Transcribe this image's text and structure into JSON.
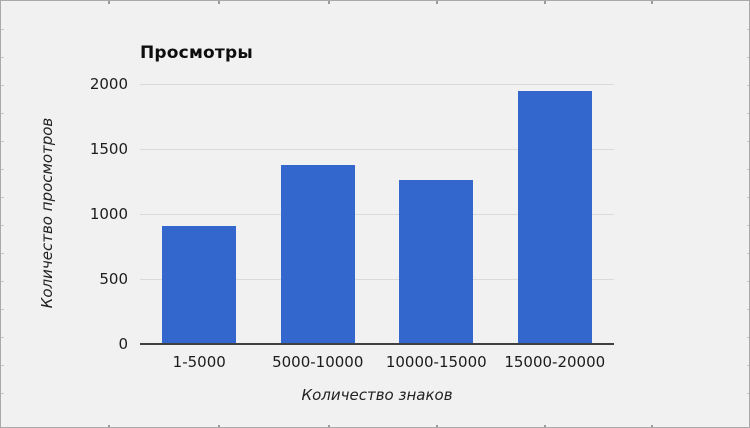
{
  "chart": {
    "title": "Просмотры",
    "x_axis_title": "Количество знаков",
    "y_axis_title": "Количество просмотров"
  },
  "chart_data": {
    "type": "bar",
    "title": "Просмотры",
    "xlabel": "Количество знаков",
    "ylabel": "Количество просмотров",
    "categories": [
      "1-5000",
      "5000-10000",
      "10000-15000",
      "15000-20000"
    ],
    "values": [
      910,
      1380,
      1260,
      1950
    ],
    "ylim": [
      0,
      2000
    ],
    "yticks": [
      0,
      500,
      1000,
      1500,
      2000
    ],
    "grid": true,
    "legend": "none",
    "bar_color": "#3367cd",
    "gridline_color": "#dadada",
    "axis_line_color": "#404040",
    "background_color": "#f1f1f2"
  }
}
